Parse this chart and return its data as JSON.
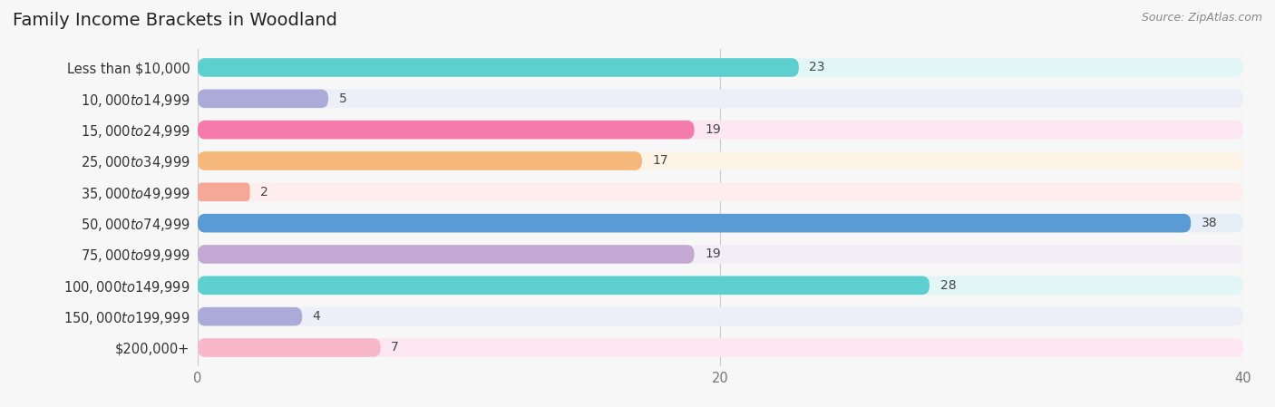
{
  "title": "Family Income Brackets in Woodland",
  "source": "Source: ZipAtlas.com",
  "categories": [
    "Less than $10,000",
    "$10,000 to $14,999",
    "$15,000 to $24,999",
    "$25,000 to $34,999",
    "$35,000 to $49,999",
    "$50,000 to $74,999",
    "$75,000 to $99,999",
    "$100,000 to $149,999",
    "$150,000 to $199,999",
    "$200,000+"
  ],
  "values": [
    23,
    5,
    19,
    17,
    2,
    38,
    19,
    28,
    4,
    7
  ],
  "bar_colors": [
    "#5ecfcf",
    "#ababd9",
    "#f47baa",
    "#f5b87a",
    "#f5a898",
    "#5b9bd5",
    "#c3a8d4",
    "#5ecfcf",
    "#ababd9",
    "#f7b8cc"
  ],
  "bar_bg_colors": [
    "#e2f6f6",
    "#eeeef8",
    "#fce6f1",
    "#fdf3e7",
    "#fdeeed",
    "#e6eef8",
    "#f3edf8",
    "#e2f6f6",
    "#eeeef8",
    "#fce6f1"
  ],
  "xlim": [
    0,
    40
  ],
  "xticks": [
    0,
    20,
    40
  ],
  "background_color": "#f7f7f7",
  "title_fontsize": 14,
  "label_fontsize": 10.5,
  "value_fontsize": 10,
  "source_fontsize": 9
}
